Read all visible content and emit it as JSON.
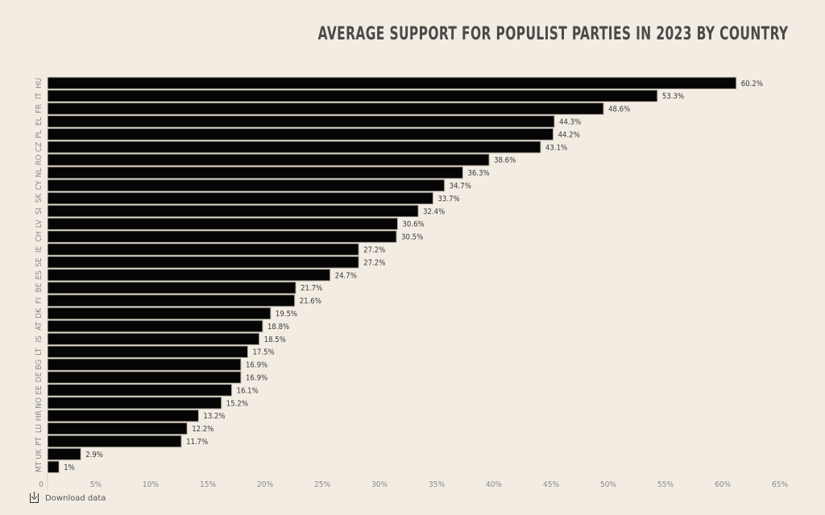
{
  "chart_data": {
    "type": "bar",
    "orientation": "horizontal",
    "title": "AVERAGE SUPPORT FOR POPULIST PARTIES IN 2023 BY COUNTRY",
    "xlabel": "",
    "ylabel": "",
    "xlim": [
      0,
      65
    ],
    "x_ticks": [
      "0",
      "5%",
      "10%",
      "15%",
      "20%",
      "25%",
      "30%",
      "35%",
      "40%",
      "45%",
      "50%",
      "55%",
      "60%",
      "65%"
    ],
    "x_tick_values": [
      0,
      5,
      10,
      15,
      20,
      25,
      30,
      35,
      40,
      45,
      50,
      55,
      60,
      65
    ],
    "grid": false,
    "categories": [
      "HU",
      "IT",
      "FR",
      "EL",
      "PL",
      "CZ",
      "RO",
      "NL",
      "CY",
      "SK",
      "SI",
      "LV",
      "CH",
      "IE",
      "SE",
      "ES",
      "BE",
      "FI",
      "DK",
      "AT",
      "IS",
      "LT",
      "BG",
      "DE",
      "EE",
      "NO",
      "HR",
      "LU",
      "PT",
      "UK",
      "MT"
    ],
    "values": [
      60.2,
      53.3,
      48.6,
      44.3,
      44.2,
      43.1,
      38.6,
      36.3,
      34.7,
      33.7,
      32.4,
      30.6,
      30.5,
      27.2,
      27.2,
      24.7,
      21.7,
      21.6,
      19.5,
      18.8,
      18.5,
      17.5,
      16.9,
      16.9,
      16.1,
      15.2,
      13.2,
      12.2,
      11.7,
      2.9,
      1
    ],
    "value_labels": [
      "60.2%",
      "53.3%",
      "48.6%",
      "44.3%",
      "44.2%",
      "43.1%",
      "38.6%",
      "36.3%",
      "34.7%",
      "33.7%",
      "32.4%",
      "30.6%",
      "30.5%",
      "27.2%",
      "27.2%",
      "24.7%",
      "21.7%",
      "21.6%",
      "19.5%",
      "18.8%",
      "18.5%",
      "17.5%",
      "16.9%",
      "16.9%",
      "16.1%",
      "15.2%",
      "13.2%",
      "12.2%",
      "11.7%",
      "2.9%",
      "1%"
    ],
    "colors": {
      "bar": "#050505",
      "background": "#f2ece2"
    }
  },
  "footer": {
    "download_label": "Download data",
    "download_icon": "download-icon"
  }
}
